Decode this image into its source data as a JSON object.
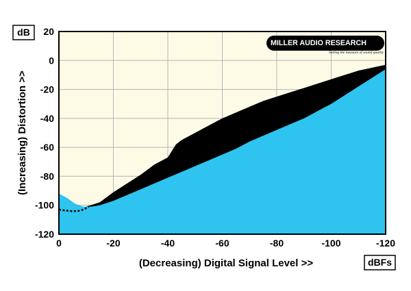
{
  "chart_data": {
    "type": "area",
    "ylabel": "(Increasing) Distortion >>",
    "xlabel": "(Decreasing) Digital Signal Level >>",
    "y_unit": "dB",
    "x_unit": "dBFs",
    "xlim": [
      0,
      -120
    ],
    "ylim": [
      -120,
      20
    ],
    "x_ticks": [
      0,
      -20,
      -40,
      -60,
      -80,
      -100,
      -120
    ],
    "y_ticks": [
      20,
      0,
      -20,
      -40,
      -60,
      -80,
      -100,
      -120
    ],
    "x_tick_labels": [
      "0",
      "-20",
      "-40",
      "-60",
      "-80",
      "-100",
      "-120"
    ],
    "y_tick_labels": [
      "20",
      "0",
      "-20",
      "-40",
      "-60",
      "-80",
      "-100",
      "-120"
    ],
    "grid": true,
    "series": [
      {
        "color": "#2ec4ef",
        "x": [
          0,
          -3,
          -6,
          -9,
          -12,
          -15,
          -20,
          -25,
          -30,
          -35,
          -40,
          -45,
          -50,
          -55,
          -60,
          -65,
          -70,
          -75,
          -80,
          -85,
          -90,
          -95,
          -100,
          -105,
          -110,
          -115,
          -120
        ],
        "y": [
          -92,
          -95,
          -99,
          -101,
          -101,
          -100,
          -97,
          -93,
          -89,
          -85,
          -81,
          -77,
          -73,
          -69,
          -65,
          -61,
          -56,
          -52,
          -48,
          -44,
          -40,
          -35,
          -30,
          -24,
          -18,
          -12,
          -6
        ]
      },
      {
        "color": "#000000",
        "x": [
          -10,
          -15,
          -20,
          -25,
          -30,
          -35,
          -40,
          -43,
          -45,
          -50,
          -55,
          -60,
          -65,
          -70,
          -75,
          -80,
          -85,
          -90,
          -95,
          -100,
          -105,
          -110,
          -115,
          -120
        ],
        "y": [
          -101,
          -98,
          -91,
          -85,
          -79,
          -72,
          -67,
          -58,
          -55,
          -50,
          -45,
          -40,
          -36,
          -32,
          -28,
          -25,
          -22,
          -19,
          -16,
          -13,
          -10,
          -7,
          -5,
          -3
        ]
      },
      {
        "color": "#000000",
        "style": "dashed",
        "x": [
          0,
          -4,
          -7,
          -9,
          -11
        ],
        "y": [
          -103,
          -104,
          -104,
          -103,
          -101
        ]
      }
    ]
  },
  "logo": {
    "text": "MILLER AUDIO RESEARCH",
    "tagline": "Setting the measure of sound quality"
  }
}
